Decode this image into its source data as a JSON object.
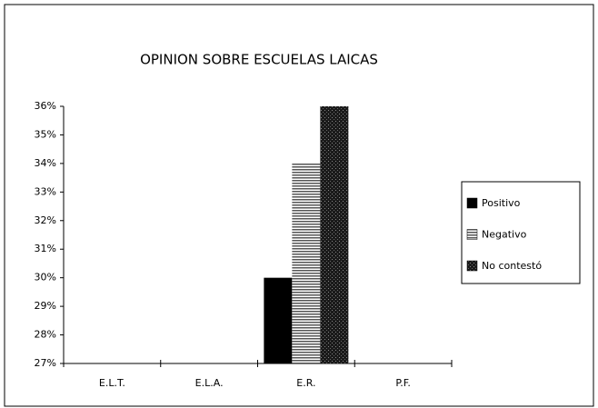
{
  "chart_data": {
    "type": "bar",
    "title": "OPINION SOBRE ESCUELAS LAICAS",
    "categories": [
      "E.L.T.",
      "E.L.A.",
      "E.R.",
      "P.F."
    ],
    "series": [
      {
        "name": "Positivo",
        "color": "#000000",
        "pattern": null,
        "values": [
          null,
          null,
          30,
          null
        ]
      },
      {
        "name": "Negativo",
        "color": "#b0b0b0",
        "pattern": "horizontal-lines",
        "values": [
          null,
          null,
          34,
          null
        ]
      },
      {
        "name": "No contestó",
        "color": "#1a1a1a",
        "pattern": "dots",
        "values": [
          null,
          null,
          36,
          null
        ]
      }
    ],
    "ylim": [
      27,
      36
    ],
    "yticks": [
      {
        "value": 27,
        "label": "27%"
      },
      {
        "value": 28,
        "label": "28%"
      },
      {
        "value": 29,
        "label": "29%"
      },
      {
        "value": 30,
        "label": "30%"
      },
      {
        "value": 31,
        "label": "31%"
      },
      {
        "value": 32,
        "label": "32%"
      },
      {
        "value": 33,
        "label": "33%"
      },
      {
        "value": 34,
        "label": "34%"
      },
      {
        "value": 35,
        "label": "35%"
      },
      {
        "value": 36,
        "label": "36%"
      }
    ],
    "grid": false,
    "legend": "right"
  }
}
